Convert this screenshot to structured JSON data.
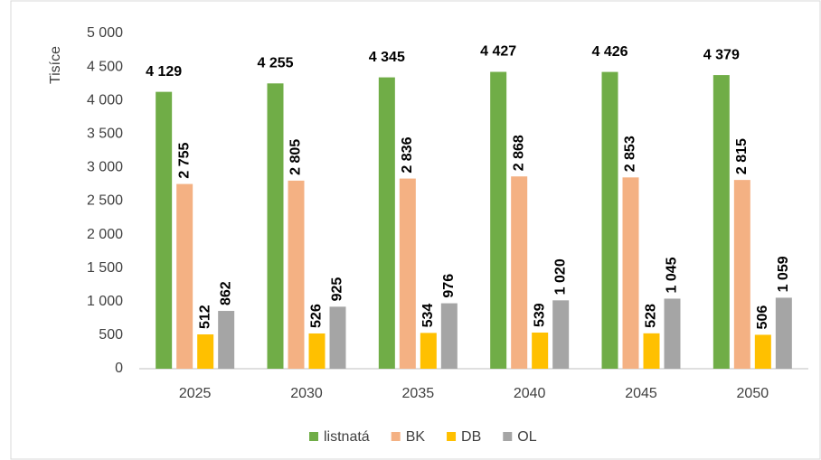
{
  "chart_data": {
    "type": "bar",
    "y_label": "Tisíce",
    "categories": [
      "2025",
      "2030",
      "2035",
      "2040",
      "2045",
      "2050"
    ],
    "series": [
      {
        "name": "listnatá",
        "color": "#70ad47",
        "values": [
          4129,
          4255,
          4345,
          4427,
          4426,
          4379
        ],
        "value_labels": [
          "4 129",
          "4 255",
          "4 345",
          "4 427",
          "4 426",
          "4 379"
        ]
      },
      {
        "name": "BK",
        "color": "#f4b183",
        "values": [
          2755,
          2805,
          2836,
          2868,
          2853,
          2815
        ],
        "value_labels": [
          "2 755",
          "2 805",
          "2 836",
          "2 868",
          "2 853",
          "2 815"
        ]
      },
      {
        "name": "DB",
        "color": "#ffc000",
        "values": [
          512,
          526,
          534,
          539,
          528,
          506
        ]
      },
      {
        "name": "OL",
        "color": "#a5a5a5",
        "values": [
          862,
          925,
          976,
          1020,
          1045,
          1059
        ],
        "value_labels": [
          "862",
          "925",
          "976",
          "1 020",
          "1 045",
          "1 059"
        ]
      }
    ],
    "ylim": [
      0,
      5000
    ],
    "yticks": [
      0,
      500,
      {
        "value": 1000,
        "label": "1 000"
      },
      {
        "value": 1500,
        "label": "1 500"
      },
      {
        "value": 2000,
        "label": "2 000"
      },
      {
        "value": 2500,
        "label": "2 500"
      },
      {
        "value": 3000,
        "label": "3 000"
      },
      {
        "value": 3500,
        "label": "3 500"
      },
      {
        "value": 4000,
        "label": "4 000"
      },
      {
        "value": 4500,
        "label": "4 500"
      },
      {
        "value": 5000,
        "label": "5 000"
      }
    ],
    "grid": false,
    "legend": "bottom"
  }
}
